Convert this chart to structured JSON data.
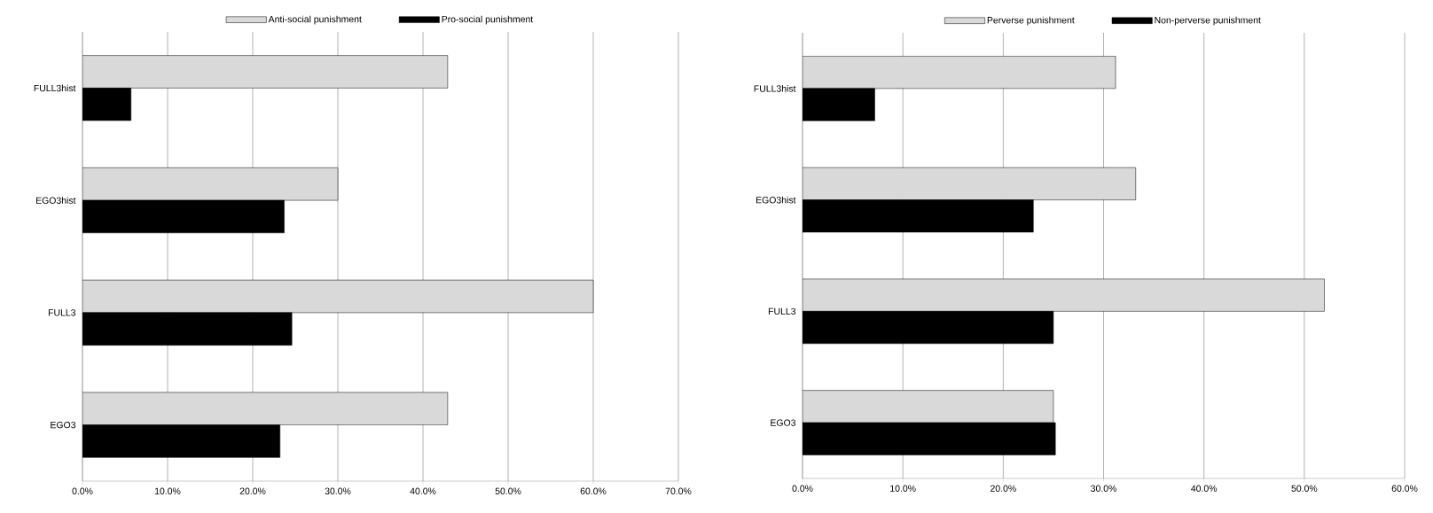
{
  "chart_data": [
    {
      "type": "bar",
      "orientation": "horizontal",
      "categories": [
        "FULL3hist",
        "EGO3hist",
        "FULL3",
        "EGO3"
      ],
      "series": [
        {
          "name": "Anti-social punishment",
          "color": "#d9d9d9",
          "values": [
            42.9,
            30.0,
            60.0,
            42.9
          ]
        },
        {
          "name": "Pro-social punishment",
          "color": "#000000",
          "values": [
            5.7,
            23.7,
            24.6,
            23.2
          ]
        }
      ],
      "xlim": [
        0,
        70
      ],
      "xticks": [
        {
          "value": 0,
          "label": "0.0%"
        },
        {
          "value": 10,
          "label": "10.0%"
        },
        {
          "value": 20,
          "label": "20.0%"
        },
        {
          "value": 30,
          "label": "30.0%"
        },
        {
          "value": 40,
          "label": "40.0%"
        },
        {
          "value": 50,
          "label": "50.0%"
        },
        {
          "value": 60,
          "label": "60.0%"
        },
        {
          "value": 70,
          "label": "70.0%"
        }
      ],
      "grid": "x",
      "legend": "top"
    },
    {
      "type": "bar",
      "orientation": "horizontal",
      "categories": [
        "FULL3hist",
        "EGO3hist",
        "FULL3",
        "EGO3"
      ],
      "series": [
        {
          "name": "Perverse punishment",
          "color": "#d9d9d9",
          "values": [
            31.2,
            33.2,
            52.0,
            25.0
          ]
        },
        {
          "name": "Non-perverse punishment",
          "color": "#000000",
          "values": [
            7.2,
            23.0,
            25.0,
            25.2
          ]
        }
      ],
      "xlim": [
        0,
        60
      ],
      "xticks": [
        {
          "value": 0,
          "label": "0.0%"
        },
        {
          "value": 10,
          "label": "10.0%"
        },
        {
          "value": 20,
          "label": "20.0%"
        },
        {
          "value": 30,
          "label": "30.0%"
        },
        {
          "value": 40,
          "label": "40.0%"
        },
        {
          "value": 50,
          "label": "50.0%"
        },
        {
          "value": 60,
          "label": "60.0%"
        }
      ],
      "grid": "x",
      "legend": "top"
    }
  ]
}
